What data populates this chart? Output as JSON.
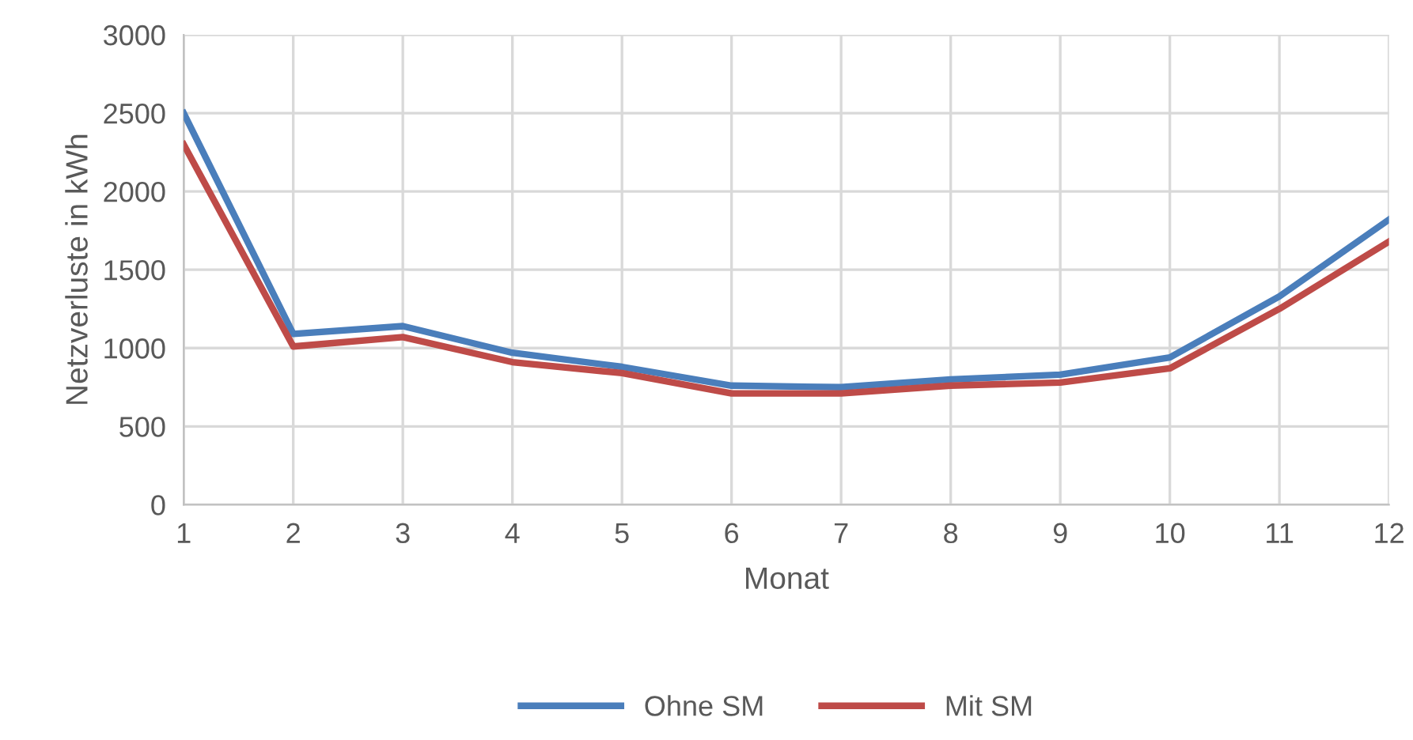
{
  "chart_data": {
    "type": "line",
    "xlabel": "Monat",
    "ylabel": "Netzverluste in kWh",
    "x": [
      1,
      2,
      3,
      4,
      5,
      6,
      7,
      8,
      9,
      10,
      11,
      12
    ],
    "series": [
      {
        "name": "Ohne SM",
        "color": "#4a7ebb",
        "values": [
          2500,
          1090,
          1140,
          970,
          880,
          760,
          750,
          800,
          830,
          940,
          1330,
          1820
        ]
      },
      {
        "name": "Mit SM",
        "color": "#be4b48",
        "values": [
          2300,
          1010,
          1070,
          910,
          840,
          710,
          710,
          760,
          780,
          870,
          1250,
          1680
        ]
      }
    ],
    "xlim": [
      1,
      12
    ],
    "xticks": [
      1,
      2,
      3,
      4,
      5,
      6,
      7,
      8,
      9,
      10,
      11,
      12
    ],
    "ylim": [
      0,
      3000
    ],
    "yticks": [
      0,
      500,
      1000,
      1500,
      2000,
      2500,
      3000
    ],
    "grid": true,
    "legend": "bottom",
    "marker": "none",
    "line_style": "solid"
  }
}
